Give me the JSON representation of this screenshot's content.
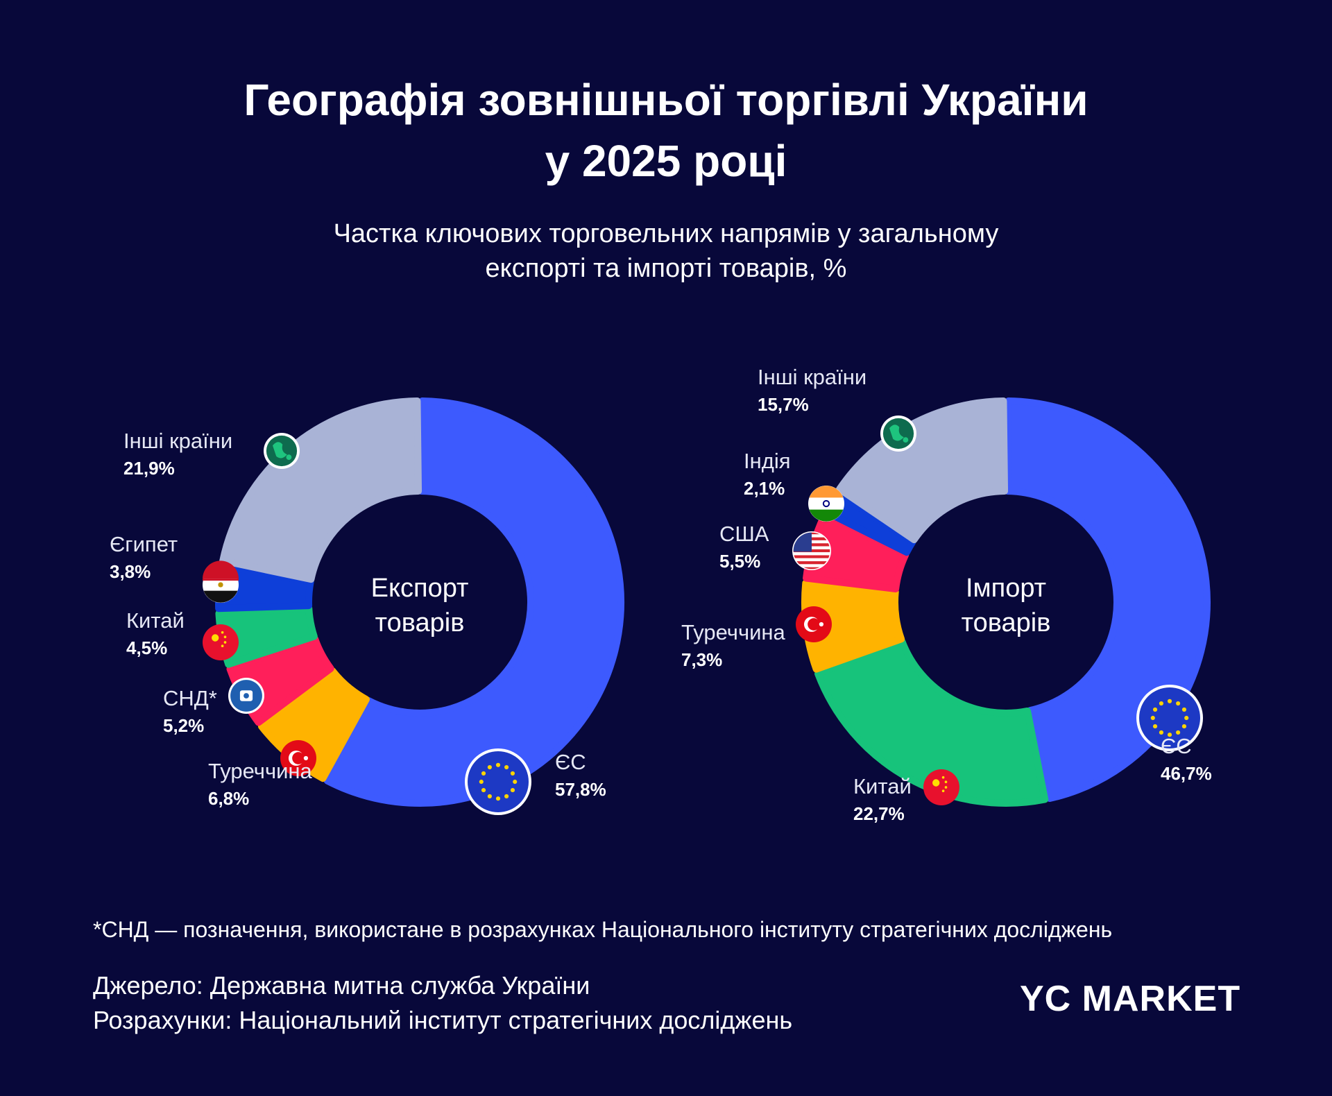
{
  "title": {
    "line1": "Географія зовнішньої торгівлі України",
    "line2": "у 2025 році"
  },
  "subtitle": {
    "line1": "Частка ключових торговельних напрямів у загальному",
    "line2": "експорті та імпорті товарів, %"
  },
  "chart_data": [
    {
      "type": "donut",
      "center_label": [
        "Експорт",
        "товарів"
      ],
      "series": [
        {
          "name": "ЄС",
          "value": 57.8,
          "label": "57,8%",
          "color": "#3d5afe",
          "icon": "eu-flag-icon"
        },
        {
          "name": "Туреччина",
          "value": 6.8,
          "label": "6,8%",
          "color": "#ffb300",
          "icon": "turkey-flag-icon"
        },
        {
          "name": "СНД*",
          "value": 5.2,
          "label": "5,2%",
          "color": "#ff1f5a",
          "icon": "cis-emblem-icon"
        },
        {
          "name": "Китай",
          "value": 4.5,
          "label": "4,5%",
          "color": "#17c37b",
          "icon": "china-flag-icon"
        },
        {
          "name": "Єгипет",
          "value": 3.8,
          "label": "3,8%",
          "color": "#0e3fd9",
          "icon": "egypt-flag-icon"
        },
        {
          "name": "Інші країни",
          "value": 21.9,
          "label": "21,9%",
          "color": "#a9b3d6",
          "icon": "globe-icon"
        }
      ]
    },
    {
      "type": "donut",
      "center_label": [
        "Імпорт",
        "товарів"
      ],
      "series": [
        {
          "name": "ЄС",
          "value": 46.7,
          "label": "46,7%",
          "color": "#3d5afe",
          "icon": "eu-flag-icon"
        },
        {
          "name": "Китай",
          "value": 22.7,
          "label": "22,7%",
          "color": "#17c37b",
          "icon": "china-flag-icon"
        },
        {
          "name": "Туреччина",
          "value": 7.3,
          "label": "7,3%",
          "color": "#ffb300",
          "icon": "turkey-flag-icon"
        },
        {
          "name": "США",
          "value": 5.5,
          "label": "5,5%",
          "color": "#ff1f5a",
          "icon": "usa-flag-icon"
        },
        {
          "name": "Індія",
          "value": 2.1,
          "label": "2,1%",
          "color": "#0e3fd9",
          "icon": "india-flag-icon"
        },
        {
          "name": "Інші країни",
          "value": 15.7,
          "label": "15,7%",
          "color": "#a9b3d6",
          "icon": "globe-icon"
        }
      ]
    }
  ],
  "footnote": "*СНД — позначення, використане в розрахунках Національного інституту стратегічних досліджень",
  "source": {
    "line1": "Джерело: Державна митна служба України",
    "line2": "Розрахунки: Національний інститут стратегічних досліджень"
  },
  "logo": "YC MARKET"
}
